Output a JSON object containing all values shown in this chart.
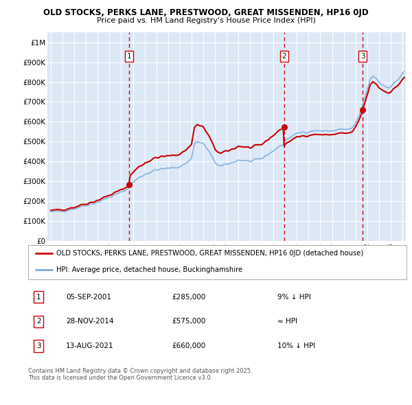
{
  "title_line1": "OLD STOCKS, PERKS LANE, PRESTWOOD, GREAT MISSENDEN, HP16 0JD",
  "title_line2": "Price paid vs. HM Land Registry's House Price Index (HPI)",
  "background_color": "#ffffff",
  "plot_bg_color": "#dce8f5",
  "grid_color": "#ffffff",
  "sale_prices": [
    285000,
    575000,
    660000
  ],
  "sale_labels": [
    "1",
    "2",
    "3"
  ],
  "sale_info": [
    {
      "num": "1",
      "date": "05-SEP-2001",
      "price": "£285,000",
      "note": "9% ↓ HPI"
    },
    {
      "num": "2",
      "date": "28-NOV-2014",
      "price": "£575,000",
      "note": "≈ HPI"
    },
    {
      "num": "3",
      "date": "13-AUG-2021",
      "price": "£660,000",
      "note": "10% ↓ HPI"
    }
  ],
  "legend_line1": "OLD STOCKS, PERKS LANE, PRESTWOOD, GREAT MISSENDEN, HP16 0JD (detached house)",
  "legend_line2": "HPI: Average price, detached house, Buckinghamshire",
  "footer_line1": "Contains HM Land Registry data © Crown copyright and database right 2025.",
  "footer_line2": "This data is licensed under the Open Government Licence v3.0.",
  "ylim": [
    0,
    1050000
  ],
  "yticks": [
    0,
    100000,
    200000,
    300000,
    400000,
    500000,
    600000,
    700000,
    800000,
    900000,
    1000000
  ],
  "ytick_labels": [
    "£0",
    "£100K",
    "£200K",
    "£300K",
    "£400K",
    "£500K",
    "£600K",
    "£700K",
    "£800K",
    "£900K",
    "£1M"
  ],
  "house_color": "#cc0000",
  "hpi_color": "#7aaddc",
  "dashed_color": "#cc0000"
}
